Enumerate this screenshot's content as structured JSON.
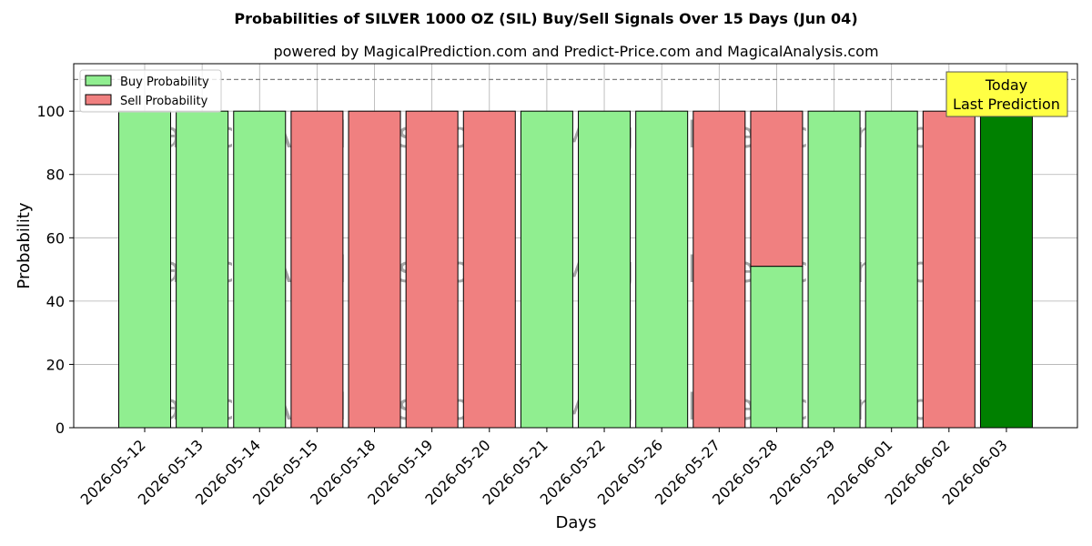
{
  "chart_data": {
    "type": "bar",
    "title": "Probabilities of SILVER 1000 OZ (SIL) Buy/Sell Signals Over 15 Days (Jun 04)",
    "subtitle": "powered by MagicalPrediction.com and Predict-Price.com and MagicalAnalysis.com",
    "xlabel": "Days",
    "ylabel": "Probability",
    "ylim": [
      0,
      115
    ],
    "yticks": [
      0,
      20,
      40,
      60,
      80,
      100
    ],
    "reference_line": 110,
    "grid": true,
    "legend_position": "top-left",
    "categories": [
      "2026-05-12",
      "2026-05-13",
      "2026-05-14",
      "2026-05-15",
      "2026-05-18",
      "2026-05-19",
      "2026-05-20",
      "2026-05-21",
      "2026-05-22",
      "2026-05-26",
      "2026-05-27",
      "2026-05-28",
      "2026-05-29",
      "2026-06-01",
      "2026-06-02",
      "2026-06-03"
    ],
    "series": [
      {
        "name": "Buy Probability",
        "color": "#90ee90",
        "values": [
          100,
          100,
          100,
          0,
          0,
          0,
          0,
          100,
          100,
          100,
          0,
          51,
          100,
          100,
          0,
          100
        ]
      },
      {
        "name": "Sell Probability",
        "color": "#f08080",
        "values": [
          0,
          0,
          0,
          100,
          100,
          100,
          100,
          0,
          0,
          0,
          100,
          49,
          0,
          0,
          100,
          0
        ]
      }
    ],
    "highlight": {
      "index": 15,
      "color": "#008000"
    },
    "annotation": {
      "lines": [
        "Today",
        "Last Prediction"
      ],
      "background": "#ffff44"
    },
    "watermarks": [
      "MagicalAnalysis.com",
      "MagicalPrediction.com"
    ]
  }
}
